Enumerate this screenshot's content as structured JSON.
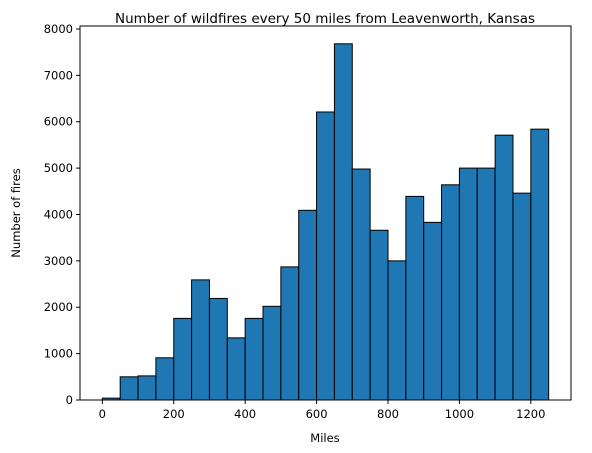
{
  "chart_data": {
    "type": "bar",
    "title": "Number of wildfires every 50 miles from Leavenworth, Kansas",
    "xlabel": "Miles",
    "ylabel": "Number of fires",
    "bin_width": 50,
    "bin_starts": [
      0,
      50,
      100,
      150,
      200,
      250,
      300,
      350,
      400,
      450,
      500,
      550,
      600,
      650,
      700,
      750,
      800,
      850,
      900,
      950,
      1000,
      1050,
      1100,
      1150,
      1200
    ],
    "values": [
      40,
      500,
      520,
      910,
      1760,
      2590,
      2190,
      1340,
      1760,
      2020,
      2870,
      4090,
      6210,
      7680,
      4980,
      3660,
      3000,
      4390,
      3830,
      4640,
      5000,
      5000,
      5710,
      4460,
      5840
    ],
    "xlim": [
      -62.5,
      1312.5
    ],
    "ylim": [
      0,
      8064
    ],
    "xticks": [
      0,
      200,
      400,
      600,
      800,
      1000,
      1200
    ],
    "yticks": [
      0,
      1000,
      2000,
      3000,
      4000,
      5000,
      6000,
      7000,
      8000
    ],
    "bar_color": "#1f77b4",
    "edge_color": "#000000",
    "grid": false,
    "legend": "none"
  }
}
